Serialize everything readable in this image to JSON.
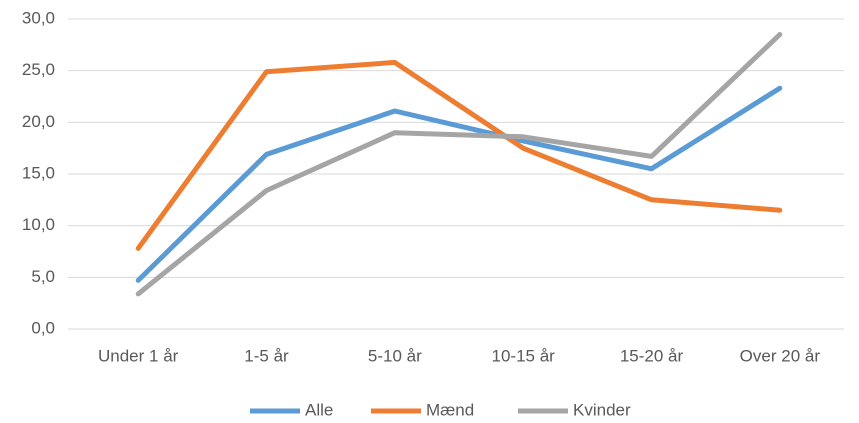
{
  "chart_data": {
    "type": "line",
    "categories": [
      "Under 1 år",
      "1-5 år",
      "5-10 år",
      "10-15 år",
      "15-20 år",
      "Over 20 år"
    ],
    "series": [
      {
        "name": "Alle",
        "color": "#5b9bd5",
        "values": [
          4.7,
          16.9,
          21.1,
          18.2,
          15.5,
          23.3
        ]
      },
      {
        "name": "Mænd",
        "color": "#ed7d31",
        "values": [
          7.8,
          24.9,
          25.8,
          17.5,
          12.5,
          11.5
        ]
      },
      {
        "name": "Kvinder",
        "color": "#a5a5a5",
        "values": [
          3.4,
          13.4,
          19.0,
          18.6,
          16.7,
          28.5
        ]
      }
    ],
    "ylim": [
      0,
      30
    ],
    "yticks": [
      {
        "value": 0,
        "label": "0,0"
      },
      {
        "value": 5,
        "label": "5,0"
      },
      {
        "value": 10,
        "label": "10,0"
      },
      {
        "value": 15,
        "label": "15,0"
      },
      {
        "value": 20,
        "label": "20,0"
      },
      {
        "value": 25,
        "label": "25,0"
      },
      {
        "value": 30,
        "label": "30,0"
      }
    ],
    "grid": true,
    "legend": "bottom"
  }
}
